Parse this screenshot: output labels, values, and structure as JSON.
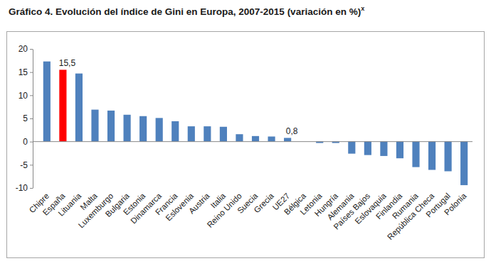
{
  "chart_data": {
    "type": "bar",
    "title": "Gráfico 4. Evolución del índice de Gini en Europa, 2007-2015 (variación en %)",
    "title_superscript": "x",
    "categories": [
      "Chipre",
      "España",
      "Lituania",
      "Malta",
      "Luxemburgo",
      "Bulgaria",
      "Estonia",
      "Dinamarca",
      "Francia",
      "Eslovenia",
      "Austria",
      "Italia",
      "Reino Unido",
      "Suecia",
      "Grecia",
      "UE27",
      "Bélgica",
      "Letonia",
      "Hungría",
      "Alemania",
      "Países Bajos",
      "Eslovaquia",
      "Finlandia",
      "Rumania",
      "República Checa",
      "Portugal",
      "Polonia"
    ],
    "values": [
      17.3,
      15.5,
      14.7,
      6.9,
      6.7,
      5.8,
      5.5,
      5.1,
      4.4,
      3.3,
      3.3,
      3.2,
      1.6,
      1.2,
      1.1,
      0.8,
      0.0,
      -0.3,
      -0.3,
      -2.6,
      -2.9,
      -3.1,
      -3.6,
      -5.5,
      -6.1,
      -6.4,
      -9.4
    ],
    "value_labels": [
      null,
      "15,5",
      null,
      null,
      null,
      null,
      null,
      null,
      null,
      null,
      null,
      null,
      null,
      null,
      null,
      "0,8",
      null,
      null,
      null,
      null,
      null,
      null,
      null,
      null,
      null,
      null,
      null
    ],
    "colors": [
      "#4f81bd",
      "#ff0000",
      "#4f81bd",
      "#4f81bd",
      "#4f81bd",
      "#4f81bd",
      "#4f81bd",
      "#4f81bd",
      "#4f81bd",
      "#4f81bd",
      "#4f81bd",
      "#4f81bd",
      "#4f81bd",
      "#4f81bd",
      "#4f81bd",
      "#4f81bd",
      "#4f81bd",
      "#4f81bd",
      "#4f81bd",
      "#4f81bd",
      "#4f81bd",
      "#4f81bd",
      "#4f81bd",
      "#4f81bd",
      "#4f81bd",
      "#4f81bd",
      "#4f81bd"
    ],
    "ylim": [
      -10,
      20
    ],
    "yticks": [
      -10,
      -5,
      0,
      5,
      10,
      15,
      20
    ],
    "grid": false,
    "data_labels": true
  }
}
